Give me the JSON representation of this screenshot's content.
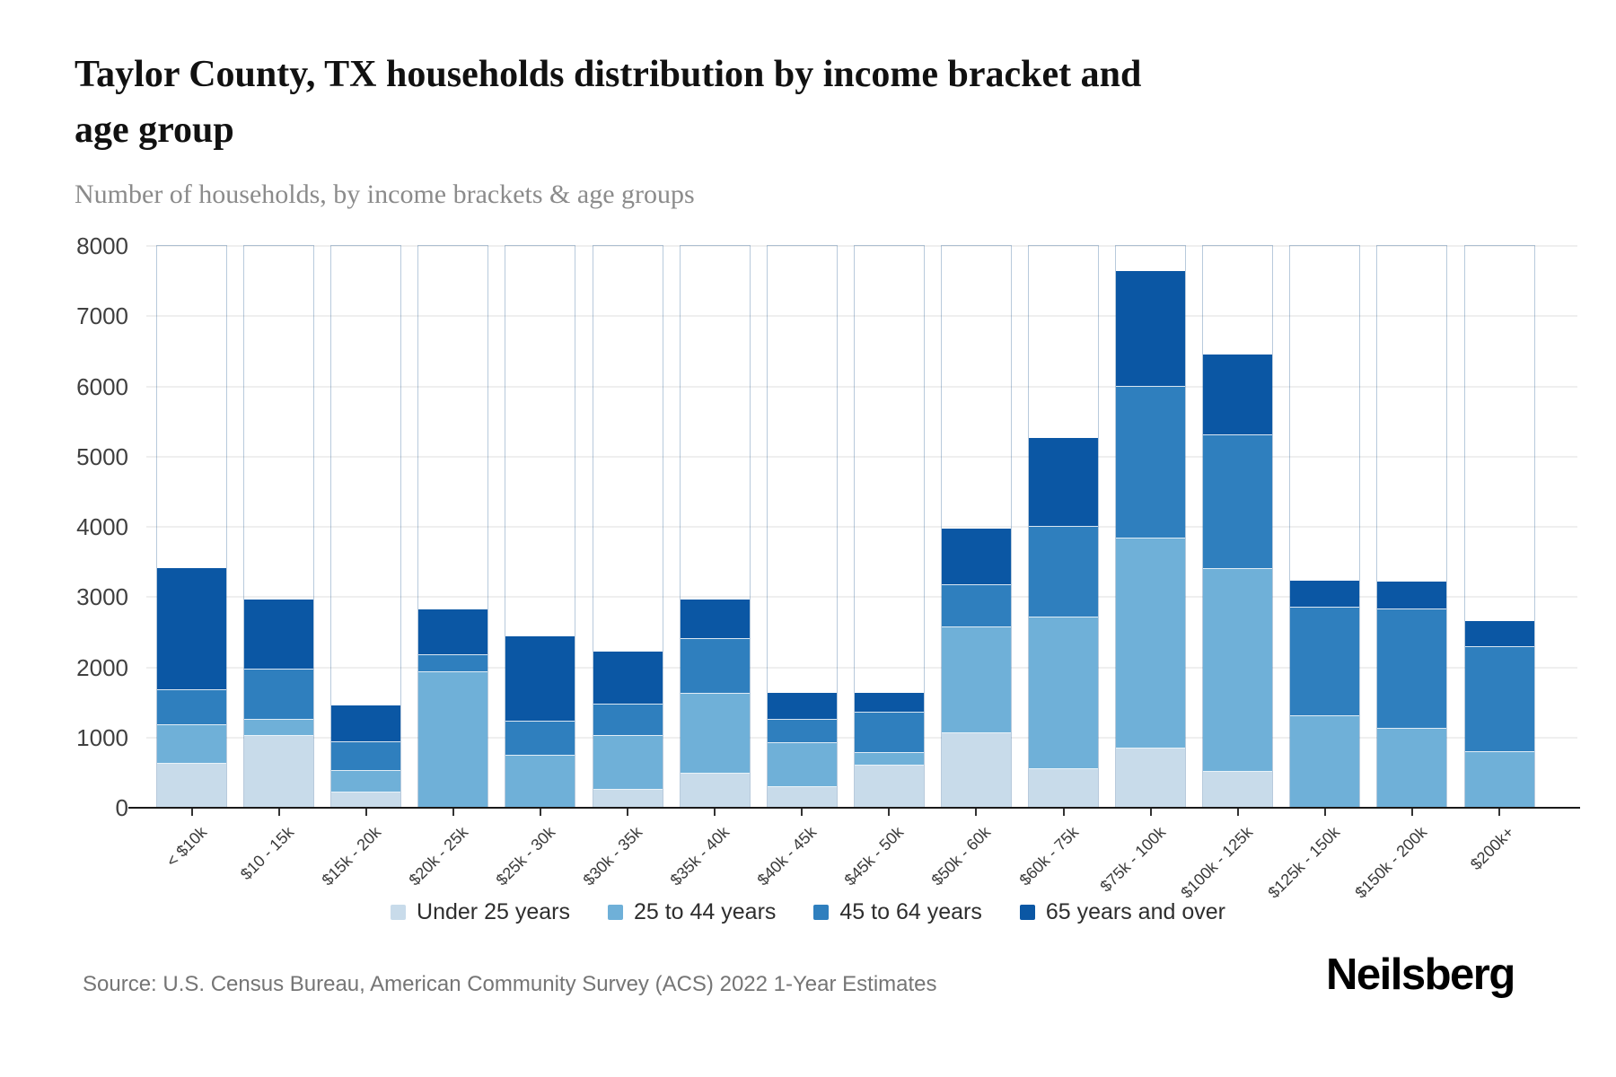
{
  "header": {
    "title_line1": "Taylor County, TX households distribution by income bracket and",
    "title_line2": "age group",
    "subtitle": "Number of households, by income brackets & age groups"
  },
  "chart_data": {
    "type": "bar",
    "stacked": true,
    "title": "Taylor County, TX households distribution by income bracket and age group",
    "subtitle": "Number of households, by income brackets & age groups",
    "xlabel": "",
    "ylabel": "Number of households",
    "ylim": [
      0,
      8000
    ],
    "yticks": [
      0,
      1000,
      2000,
      3000,
      4000,
      5000,
      6000,
      7000,
      8000
    ],
    "grid": true,
    "legend_position": "bottom",
    "categories": [
      "< $10k",
      "$10 - 15k",
      "$15k - 20k",
      "$20k - 25k",
      "$25k - 30k",
      "$30k - 35k",
      "$35k - 40k",
      "$40k - 45k",
      "$45k - 50k",
      "$50k - 60k",
      "$60k - 75k",
      "$75k - 100k",
      "$100k - 125k",
      "$125k - 150k",
      "$150k - 200k",
      "$200k+"
    ],
    "series": [
      {
        "name": "Under 25 years",
        "color": "#c8dbea",
        "values": [
          630,
          1020,
          215,
          0,
          0,
          260,
          490,
          300,
          595,
          1065,
          555,
          845,
          510,
          0,
          0,
          0
        ]
      },
      {
        "name": "25 to 44 years",
        "color": "#6fb0d8",
        "values": [
          540,
          235,
          315,
          1935,
          745,
          760,
          1130,
          615,
          185,
          1510,
          2155,
          2985,
          2895,
          1300,
          1125,
          790
        ]
      },
      {
        "name": "45 to 64 years",
        "color": "#2f7fbe",
        "values": [
          505,
          715,
          405,
          235,
          480,
          445,
          785,
          340,
          580,
          595,
          1290,
          2160,
          1895,
          1550,
          1695,
          1500
        ]
      },
      {
        "name": "65 years and over",
        "color": "#0b57a4",
        "values": [
          1730,
          980,
          510,
          640,
          1200,
          750,
          545,
          370,
          265,
          795,
          1255,
          1635,
          1135,
          375,
          390,
          350
        ]
      }
    ],
    "totals": [
      3405,
      2950,
      1445,
      2810,
      2425,
      2215,
      2950,
      1625,
      1625,
      3965,
      5255,
      7625,
      6435,
      3225,
      3210,
      2640
    ]
  },
  "footer": {
    "source": "Source: U.S. Census Bureau, American Community Survey (ACS) 2022 1-Year Estimates",
    "logo": "Neilsberg"
  }
}
